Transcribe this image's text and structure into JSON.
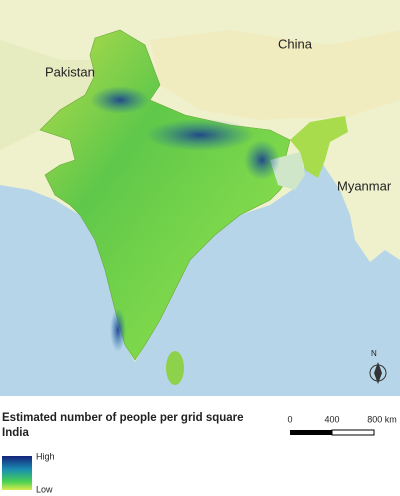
{
  "map": {
    "labels": {
      "pakistan": "Pakistan",
      "china": "China",
      "myanmar": "Myanmar",
      "north": "N"
    },
    "legend": {
      "title": "Estimated number of people per grid square",
      "subtitle": "India",
      "high": "High",
      "low": "Low"
    },
    "scale_bar": {
      "ticks": [
        "0",
        "400",
        "800 km"
      ]
    }
  }
}
